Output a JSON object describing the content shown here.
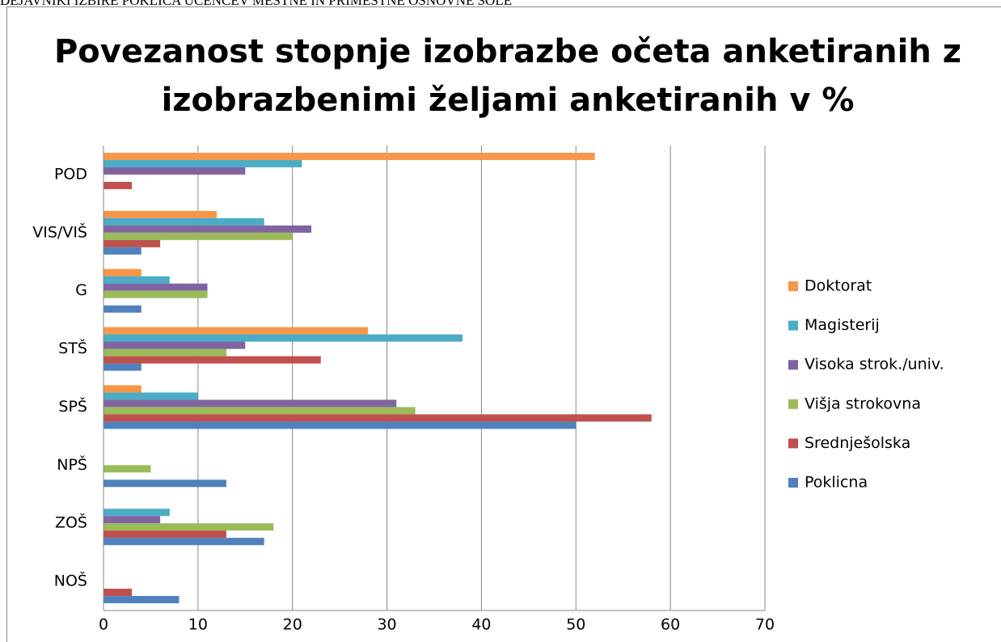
{
  "page_header": "DEJAVNIKI IZBIRE POKLICA UČENCEV MESTNE IN PRIMESTNE OSNOVNE ŠOLE",
  "chart_data": {
    "type": "hbar",
    "title": [
      "Povezanost stopnje izobrazbe očeta anketiranih z",
      "izobrazbenimi željami anketiranih v %"
    ],
    "categories": [
      "POD",
      "VIS/VIŠ",
      "G",
      "STŠ",
      "SPŠ",
      "NPŠ",
      "ZOŠ",
      "NOŠ"
    ],
    "series": [
      {
        "name": "Doktorat",
        "color": "#F79646",
        "values": [
          52,
          12,
          4,
          28,
          4,
          0,
          0,
          0
        ]
      },
      {
        "name": "Magisterij",
        "color": "#4BACC6",
        "values": [
          21,
          17,
          7,
          38,
          10,
          0,
          7,
          0
        ]
      },
      {
        "name": "Visoka strok./univ.",
        "color": "#8064A2",
        "values": [
          15,
          22,
          11,
          15,
          31,
          0,
          6,
          0
        ]
      },
      {
        "name": "Višja strokovna",
        "color": "#9BBB59",
        "values": [
          0,
          20,
          11,
          13,
          33,
          5,
          18,
          0
        ]
      },
      {
        "name": "Srednješolska",
        "color": "#C0504D",
        "values": [
          3,
          6,
          0,
          23,
          58,
          0,
          13,
          3
        ]
      },
      {
        "name": "Poklicna",
        "color": "#4F81BD",
        "values": [
          0,
          4,
          4,
          4,
          50,
          13,
          17,
          8
        ]
      }
    ],
    "xlim": [
      0,
      70
    ],
    "xticks": [
      0,
      10,
      20,
      30,
      40,
      50,
      60,
      70
    ],
    "grid": true,
    "legend": "right"
  }
}
